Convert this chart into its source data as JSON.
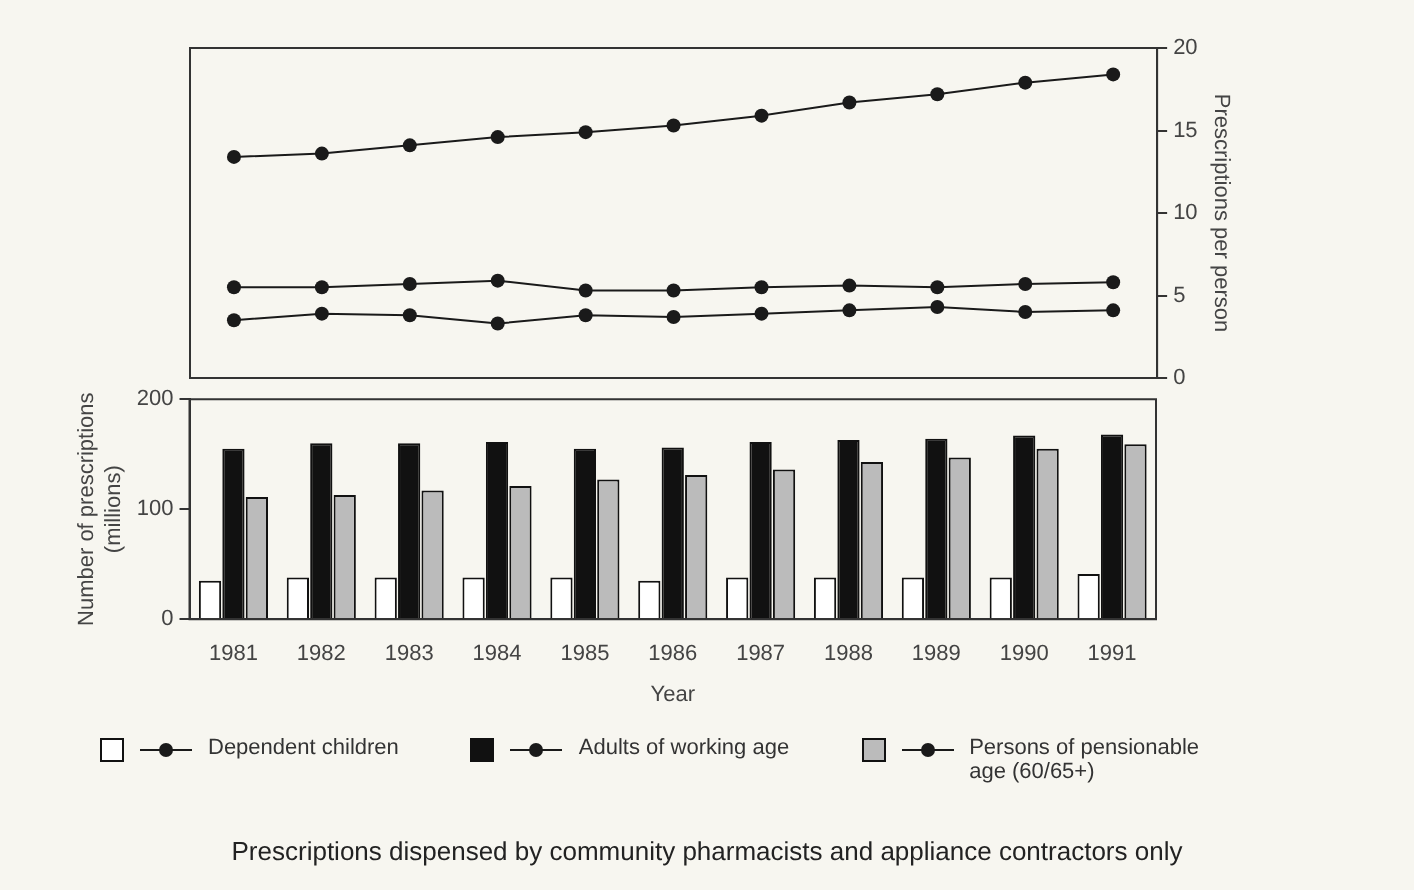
{
  "chart_data": [
    {
      "type": "line",
      "categories": [
        "1981",
        "1982",
        "1983",
        "1984",
        "1985",
        "1986",
        "1987",
        "1988",
        "1989",
        "1990",
        "1991"
      ],
      "ylabel": "Prescriptions per person",
      "ylim": [
        0,
        20
      ],
      "yticks": [
        0,
        5,
        10,
        15,
        20
      ],
      "tick_labels": "y",
      "marker": "circle",
      "legend": "bottom",
      "grid": false,
      "series": [
        {
          "name": "Dependent children",
          "color": "#1a1a1a",
          "values": [
            3.5,
            3.9,
            3.8,
            3.3,
            3.8,
            3.7,
            3.9,
            4.1,
            4.3,
            4.0,
            4.1
          ]
        },
        {
          "name": "Adults of working age",
          "color": "#1a1a1a",
          "values": [
            5.5,
            5.5,
            5.7,
            5.9,
            5.3,
            5.3,
            5.5,
            5.6,
            5.5,
            5.7,
            5.8
          ]
        },
        {
          "name": "Persons of pensionable age (60/65+)",
          "color": "#1a1a1a",
          "values": [
            13.4,
            13.6,
            14.1,
            14.6,
            14.9,
            15.3,
            15.9,
            16.7,
            17.2,
            17.9,
            18.4
          ]
        }
      ]
    },
    {
      "type": "bar",
      "categories": [
        "1981",
        "1982",
        "1983",
        "1984",
        "1985",
        "1986",
        "1987",
        "1988",
        "1989",
        "1990",
        "1991"
      ],
      "xlabel": "Year",
      "ylabel": "Number of prescriptions (millions)",
      "ylim": [
        0,
        200
      ],
      "yticks": [
        0,
        100,
        200
      ],
      "grid": false,
      "annotations": [
        "Prescriptions dispensed by community pharmacists and appliance contractors only"
      ],
      "series": [
        {
          "color": "#ffffff",
          "values": [
            35,
            38,
            38,
            38,
            38,
            35,
            38,
            38,
            38,
            38,
            41
          ]
        },
        {
          "color": "#111111",
          "values": [
            155,
            160,
            160,
            161,
            155,
            156,
            161,
            163,
            164,
            167,
            168
          ]
        },
        {
          "color": "#bbbbbb",
          "values": [
            111,
            113,
            117,
            121,
            127,
            131,
            136,
            143,
            147,
            155,
            159
          ]
        }
      ]
    }
  ]
}
